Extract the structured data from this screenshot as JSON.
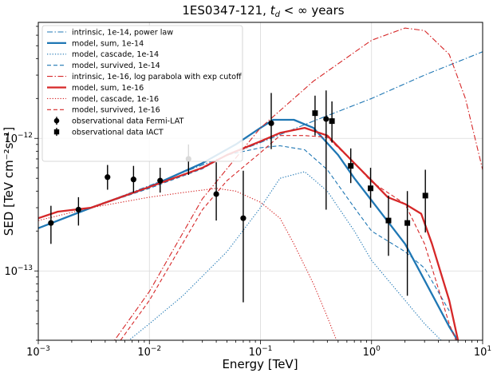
{
  "chart_data": {
    "type": "line",
    "title": "1ES0347-121, t_d < ∞ years",
    "title_main": "1ES0347-121,",
    "title_sym": "t",
    "title_sub": "d",
    "title_rest": " < ∞ years",
    "xlabel": "Energy [TeV]",
    "ylabel": "SED [TeV cm⁻²s⁻¹]",
    "xscale": "log",
    "yscale": "log",
    "xlim": [
      0.001,
      10
    ],
    "ylim": [
      3e-14,
      7.5e-12
    ],
    "grid": true,
    "legend_position": "top-left",
    "x_tick_labels": [
      {
        "value": 0.001,
        "base": "10",
        "exp": "−3"
      },
      {
        "value": 0.01,
        "base": "10",
        "exp": "−2"
      },
      {
        "value": 0.1,
        "base": "10",
        "exp": "−1"
      },
      {
        "value": 1,
        "base": "10",
        "exp": "0"
      },
      {
        "value": 10,
        "base": "10",
        "exp": "1"
      }
    ],
    "y_tick_labels": [
      {
        "value": 1e-13,
        "base": "10",
        "exp": "−13"
      },
      {
        "value": 1e-12,
        "base": "10",
        "exp": "−12"
      }
    ],
    "series": [
      {
        "name": "intrinsic, 1e-14, power law",
        "color": "#1f77b4",
        "style": "dashdot",
        "x": [
          0.001,
          0.003,
          0.01,
          0.03,
          0.1,
          0.3,
          1,
          3,
          10
        ],
        "y": [
          2.1e-13,
          3e-13,
          4.4e-13,
          6.3e-13,
          9.3e-13,
          1.35e-12,
          2e-12,
          3e-12,
          4.5e-12
        ]
      },
      {
        "name": "model, sum, 1e-14",
        "color": "#1f77b4",
        "style": "solid",
        "x": [
          0.001,
          0.003,
          0.01,
          0.03,
          0.06,
          0.1,
          0.13,
          0.2,
          0.3,
          0.5,
          0.7,
          1,
          2,
          3,
          5,
          7
        ],
        "y": [
          2.1e-13,
          3e-13,
          4.3e-13,
          6.5e-13,
          9e-13,
          1.2e-12,
          1.38e-12,
          1.38e-12,
          1.2e-12,
          7.5e-13,
          5e-13,
          3.4e-13,
          1.6e-13,
          8.5e-14,
          3.8e-14,
          2.4e-14
        ]
      },
      {
        "name": "model, cascade, 1e-14",
        "color": "#1f77b4",
        "style": "dotted",
        "x": [
          0.005,
          0.01,
          0.02,
          0.05,
          0.1,
          0.15,
          0.25,
          0.4,
          0.7,
          1,
          2,
          3,
          5
        ],
        "y": [
          2.5e-14,
          4e-14,
          6.5e-14,
          1.4e-13,
          3e-13,
          5e-13,
          5.6e-13,
          4e-13,
          2e-13,
          1.2e-13,
          6e-14,
          4e-14,
          2.6e-14
        ]
      },
      {
        "name": "model, survived, 1e-14",
        "color": "#1f77b4",
        "style": "dashed",
        "x": [
          0.001,
          0.003,
          0.01,
          0.03,
          0.05,
          0.1,
          0.15,
          0.25,
          0.4,
          0.7,
          1,
          2,
          3,
          5
        ],
        "y": [
          2.1e-13,
          3e-13,
          4.2e-13,
          5.9e-13,
          7.5e-13,
          8.5e-13,
          8.8e-13,
          8.2e-13,
          5.8e-13,
          3e-13,
          2e-13,
          1.4e-13,
          1.05e-13,
          5e-14
        ]
      },
      {
        "name": "intrinsic, 1e-16, log parabola with exp cutoff",
        "color": "#d62728",
        "style": "dashdot",
        "x": [
          0.003,
          0.01,
          0.03,
          0.1,
          0.3,
          1,
          2,
          3,
          5,
          7,
          10
        ],
        "y": [
          1.7e-14,
          7e-14,
          3.5e-13,
          1.2e-12,
          2.7e-12,
          5.5e-12,
          6.8e-12,
          6.5e-12,
          4.3e-12,
          2e-12,
          5.8e-13
        ]
      },
      {
        "name": "model, sum, 1e-16",
        "color": "#d62728",
        "style": "solid",
        "x": [
          0.001,
          0.0015,
          0.003,
          0.01,
          0.03,
          0.05,
          0.1,
          0.15,
          0.25,
          0.4,
          0.7,
          1,
          1.4,
          2,
          2.8,
          3.5,
          5,
          6
        ],
        "y": [
          2.5e-13,
          2.8e-13,
          3e-13,
          4.3e-13,
          6e-13,
          7.5e-13,
          9.5e-13,
          1.1e-12,
          1.2e-12,
          1.05e-12,
          6.5e-13,
          4.8e-13,
          3.6e-13,
          3.2e-13,
          2.7e-13,
          1.6e-13,
          6e-14,
          3e-14
        ]
      },
      {
        "name": "model, cascade, 1e-16",
        "color": "#d62728",
        "style": "dotted",
        "x": [
          0.001,
          0.003,
          0.01,
          0.02,
          0.04,
          0.06,
          0.1,
          0.15,
          0.2,
          0.3,
          0.4,
          0.5
        ],
        "y": [
          2.4e-13,
          3e-13,
          3.6e-13,
          3.9e-13,
          4.2e-13,
          4e-13,
          3.3e-13,
          2.5e-13,
          1.6e-13,
          8e-14,
          4.5e-14,
          2.8e-14
        ]
      },
      {
        "name": "model, survived, 1e-16",
        "color": "#d62728",
        "style": "dashed",
        "x": [
          0.0055,
          0.01,
          0.03,
          0.05,
          0.1,
          0.15,
          0.25,
          0.4,
          0.7,
          1,
          2,
          3,
          5,
          7
        ],
        "y": [
          3e-14,
          6e-14,
          2.9e-13,
          4.8e-13,
          7.8e-13,
          1.05e-12,
          1.05e-12,
          1.02e-12,
          6.5e-13,
          4.7e-13,
          3.2e-13,
          1.6e-13,
          4e-14,
          2e-14
        ]
      }
    ],
    "observations": [
      {
        "name": "observational data Fermi-LAT",
        "marker": "circle",
        "color": "#000000",
        "points": [
          {
            "x": 0.0013,
            "y": 2.3e-13,
            "ylo": 1.6e-13,
            "yhi": 3.1e-13
          },
          {
            "x": 0.0023,
            "y": 2.9e-13,
            "ylo": 2.2e-13,
            "yhi": 3.6e-13
          },
          {
            "x": 0.0042,
            "y": 5.1e-13,
            "ylo": 4.1e-13,
            "yhi": 6.3e-13
          },
          {
            "x": 0.0072,
            "y": 4.9e-13,
            "ylo": 3.9e-13,
            "yhi": 6.2e-13
          },
          {
            "x": 0.0125,
            "y": 4.8e-13,
            "ylo": 3.9e-13,
            "yhi": 6e-13
          },
          {
            "x": 0.0225,
            "y": 7e-13,
            "ylo": 5.3e-13,
            "yhi": 9e-13
          },
          {
            "x": 0.04,
            "y": 3.8e-13,
            "ylo": 2.4e-13,
            "yhi": 6.6e-13
          },
          {
            "x": 0.07,
            "y": 2.5e-13,
            "ylo": 5.8e-14,
            "yhi": 5.7e-13
          },
          {
            "x": 0.125,
            "y": 1.3e-12,
            "ylo": 8.3e-13,
            "yhi": 2.2e-12
          },
          {
            "x": 0.39,
            "y": 1.4e-12,
            "ylo": 2.9e-13,
            "yhi": 2.3e-12
          }
        ]
      },
      {
        "name": "observational data IACT",
        "marker": "square",
        "color": "#000000",
        "points": [
          {
            "x": 0.31,
            "y": 1.55e-12,
            "ylo": 1.05e-12,
            "yhi": 2.1e-12
          },
          {
            "x": 0.44,
            "y": 1.35e-12,
            "ylo": 9.3e-13,
            "yhi": 1.9e-12
          },
          {
            "x": 0.65,
            "y": 6.2e-13,
            "ylo": 4.6e-13,
            "yhi": 8.4e-13
          },
          {
            "x": 0.98,
            "y": 4.2e-13,
            "ylo": 3e-13,
            "yhi": 6e-13
          },
          {
            "x": 1.42,
            "y": 2.4e-13,
            "ylo": 1.3e-13,
            "yhi": 3.7e-13
          },
          {
            "x": 2.1,
            "y": 2.3e-13,
            "ylo": 6.5e-14,
            "yhi": 4e-13
          },
          {
            "x": 3.05,
            "y": 3.7e-13,
            "ylo": 1.95e-13,
            "yhi": 5.8e-13
          }
        ]
      }
    ]
  }
}
